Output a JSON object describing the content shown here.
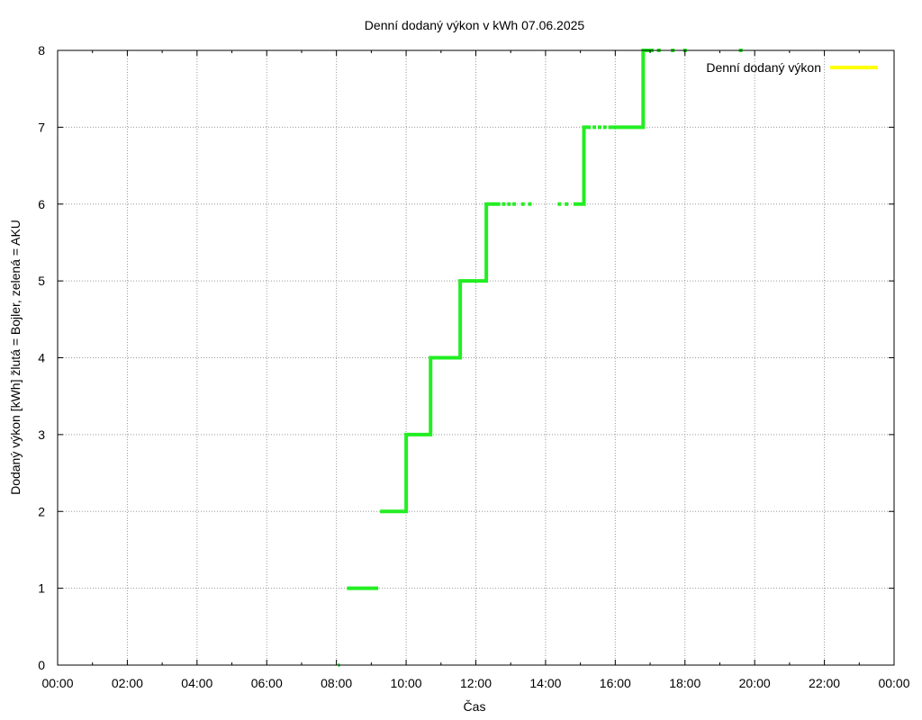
{
  "chart_data": {
    "type": "line",
    "title": "Denní dodaný výkon v kWh 07.06.2025",
    "xlabel": "Čas",
    "ylabel": "Dodaný výkon [kWh]  žlutá = Bojler, zelená = AKU",
    "x_ticks": [
      "00:00",
      "02:00",
      "04:00",
      "06:00",
      "08:00",
      "10:00",
      "12:00",
      "14:00",
      "16:00",
      "18:00",
      "20:00",
      "22:00",
      "00:00"
    ],
    "xlim": [
      0,
      24
    ],
    "ylim": [
      0,
      8
    ],
    "y_ticks": [
      0,
      1,
      2,
      3,
      4,
      5,
      6,
      7,
      8
    ],
    "grid": true,
    "legend": "top-right",
    "series": [
      {
        "name": "Denní dodaný výkon",
        "color": "#ffff00",
        "points": []
      },
      {
        "color": "#22ee22",
        "segments": [
          [
            [
              8.05,
              0
            ],
            [
              8.1,
              0
            ]
          ],
          [
            [
              8.3,
              1
            ],
            [
              9.2,
              1
            ]
          ],
          [
            [
              9.25,
              2
            ],
            [
              10.0,
              2
            ],
            [
              10.0,
              3
            ],
            [
              10.7,
              3
            ],
            [
              10.7,
              4
            ],
            [
              11.55,
              4
            ],
            [
              11.55,
              5
            ],
            [
              12.3,
              5
            ],
            [
              12.3,
              6
            ],
            [
              12.7,
              6
            ]
          ],
          [
            [
              14.8,
              6
            ],
            [
              15.1,
              6
            ],
            [
              15.1,
              7
            ],
            [
              15.3,
              7
            ]
          ],
          [
            [
              15.8,
              7
            ],
            [
              16.8,
              7
            ],
            [
              16.8,
              8
            ],
            [
              17.1,
              8
            ]
          ]
        ],
        "dots": [
          [
            12.8,
            6
          ],
          [
            12.95,
            6
          ],
          [
            13.1,
            6
          ],
          [
            13.35,
            6
          ],
          [
            13.55,
            6
          ],
          [
            14.4,
            6
          ],
          [
            14.6,
            6
          ],
          [
            15.4,
            7
          ],
          [
            15.55,
            7
          ],
          [
            15.7,
            7
          ],
          [
            17.25,
            8
          ],
          [
            17.65,
            8
          ],
          [
            18.0,
            8
          ],
          [
            19.6,
            8
          ]
        ]
      }
    ]
  }
}
